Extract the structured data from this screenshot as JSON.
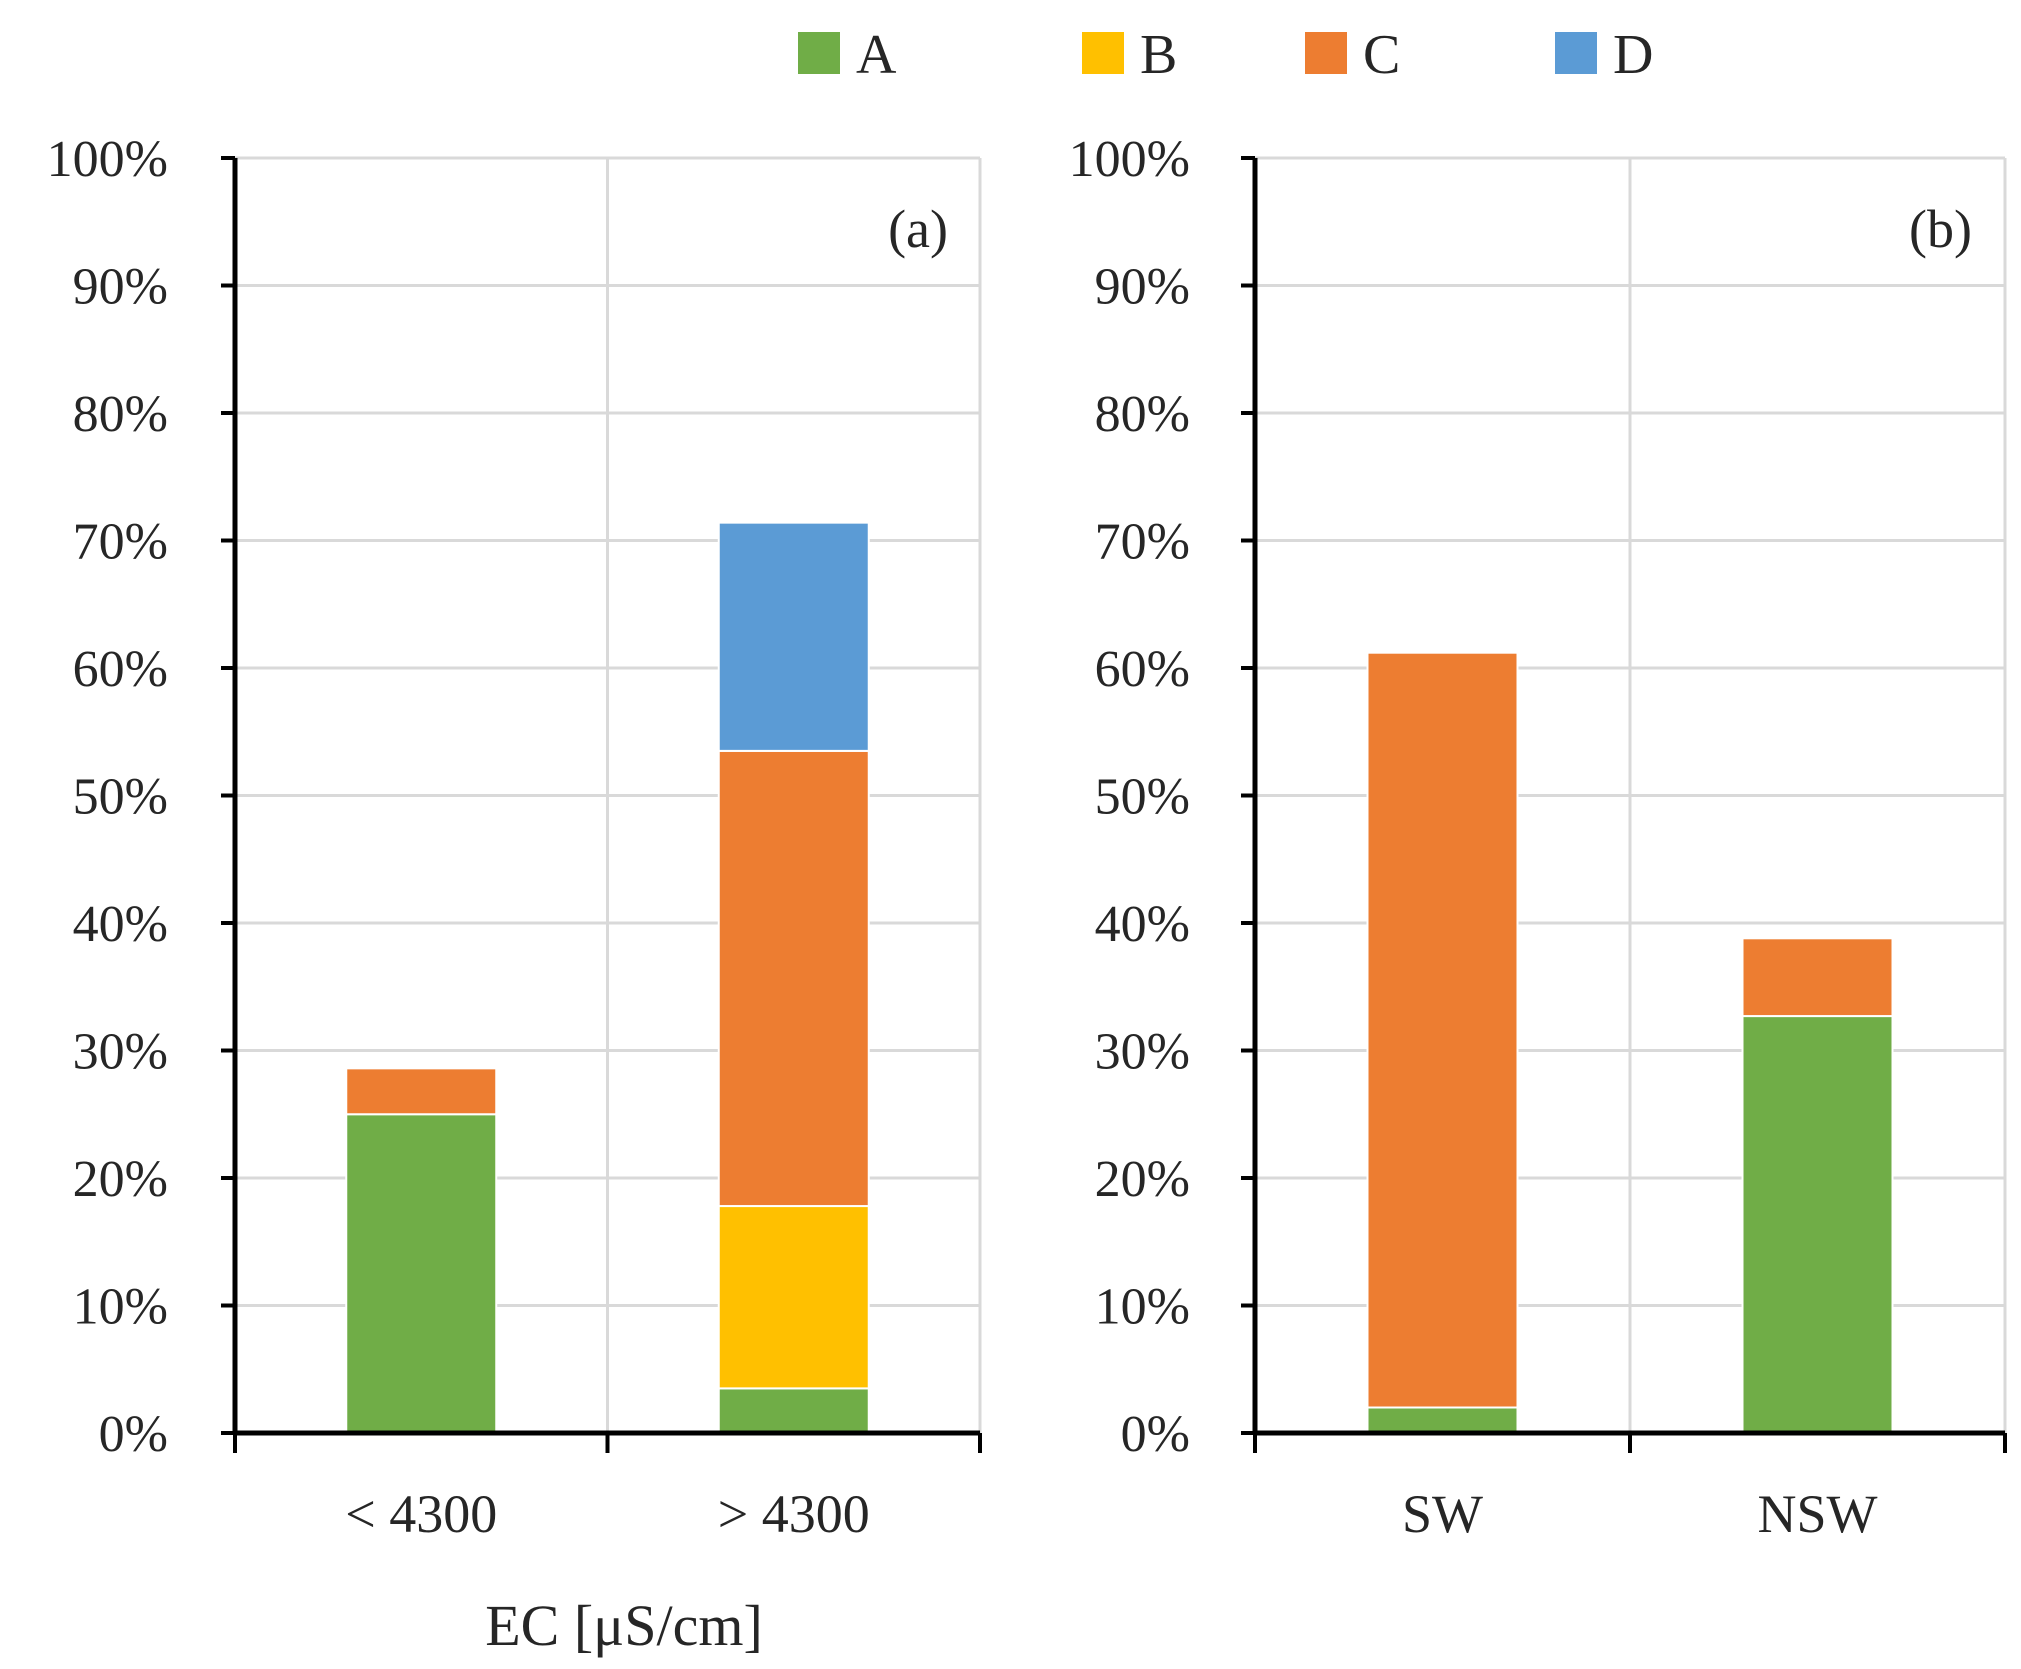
{
  "legend": [
    {
      "label": "A",
      "color": "#70ad47"
    },
    {
      "label": "B",
      "color": "#ffc000"
    },
    {
      "label": "C",
      "color": "#ed7d31"
    },
    {
      "label": "D",
      "color": "#5b9bd5"
    }
  ],
  "chart_data": [
    {
      "type": "bar",
      "stacked": true,
      "panel_label": "(a)",
      "categories": [
        "< 4300",
        "> 4300"
      ],
      "xlabel": "EC [μS/cm]",
      "ylabel": "",
      "ylim": [
        0,
        100
      ],
      "yticks": [
        "0%",
        "10%",
        "20%",
        "30%",
        "40%",
        "50%",
        "60%",
        "70%",
        "80%",
        "90%",
        "100%"
      ],
      "grid": true,
      "series": [
        {
          "name": "A",
          "values": [
            25,
            3.5
          ]
        },
        {
          "name": "B",
          "values": [
            0,
            14.3
          ]
        },
        {
          "name": "C",
          "values": [
            3.6,
            35.7
          ]
        },
        {
          "name": "D",
          "values": [
            0,
            17.9
          ]
        }
      ]
    },
    {
      "type": "bar",
      "stacked": true,
      "panel_label": "(b)",
      "categories": [
        "SW",
        "NSW"
      ],
      "xlabel": "",
      "ylabel": "",
      "ylim": [
        0,
        100
      ],
      "yticks": [
        "0%",
        "10%",
        "20%",
        "30%",
        "40%",
        "50%",
        "60%",
        "70%",
        "80%",
        "90%",
        "100%"
      ],
      "grid": true,
      "series": [
        {
          "name": "A",
          "values": [
            2,
            32.7
          ]
        },
        {
          "name": "B",
          "values": [
            0,
            0
          ]
        },
        {
          "name": "C",
          "values": [
            59.2,
            6.1
          ]
        },
        {
          "name": "D",
          "values": [
            0,
            0
          ]
        }
      ]
    }
  ]
}
